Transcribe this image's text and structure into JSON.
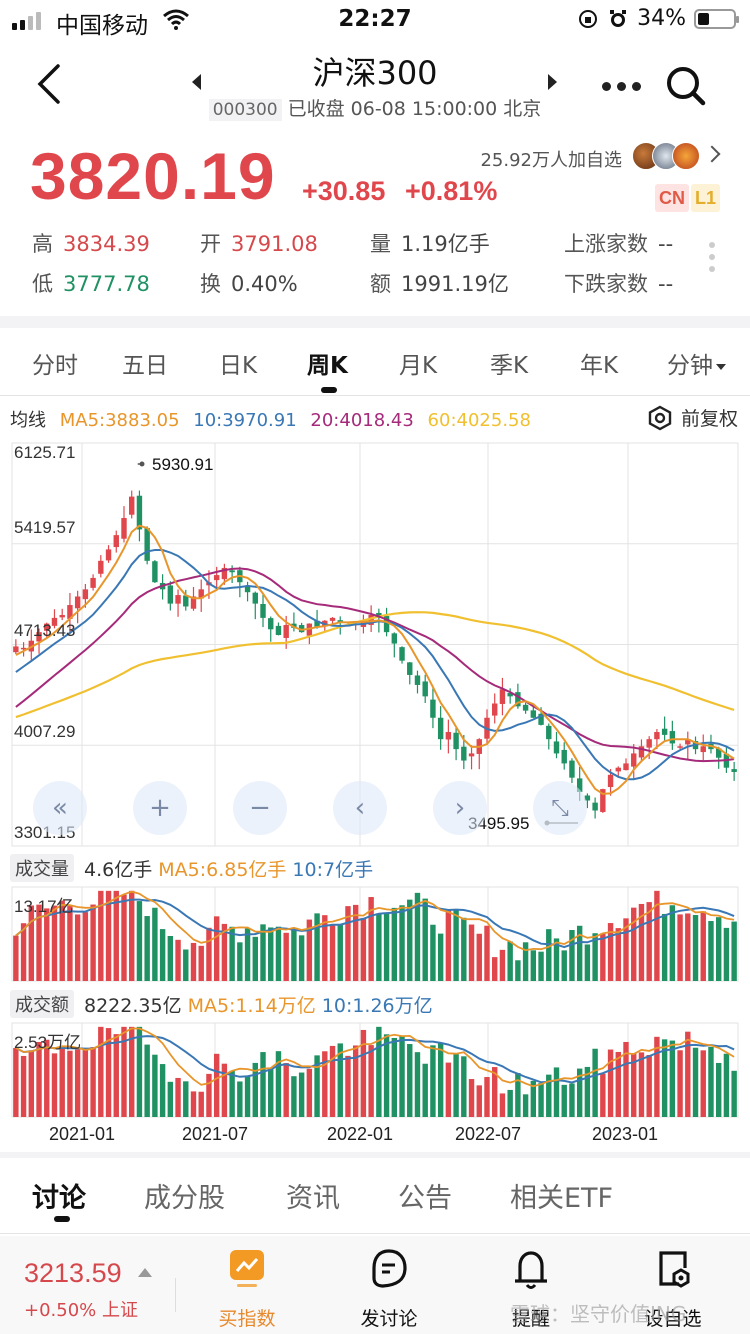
{
  "status_bar": {
    "carrier": "中国移动",
    "time": "22:27",
    "battery": "34%"
  },
  "header": {
    "title": "沪深300",
    "code": "000300",
    "market_status": "已收盘 06-08 15:00:00 北京"
  },
  "quote": {
    "price": "3820.19",
    "change": "+30.85",
    "change_pct": "+0.81%",
    "followers": "25.92万人加自选",
    "badge_cn": "CN",
    "badge_l1": "L1",
    "stats": [
      {
        "label": "高",
        "value": "3834.39",
        "tone": "red"
      },
      {
        "label": "开",
        "value": "3791.08",
        "tone": "red"
      },
      {
        "label": "量",
        "value": "1.19亿手",
        "tone": "dark"
      },
      {
        "label": "上涨家数",
        "value": "--",
        "tone": "dark"
      },
      {
        "label": "低",
        "value": "3777.78",
        "tone": "green"
      },
      {
        "label": "换",
        "value": "0.40%",
        "tone": "dark"
      },
      {
        "label": "额",
        "value": "1991.19亿",
        "tone": "dark"
      },
      {
        "label": "下跌家数",
        "value": "--",
        "tone": "dark"
      }
    ]
  },
  "period_tabs": [
    "分时",
    "五日",
    "日K",
    "周K",
    "月K",
    "季K",
    "年K",
    "分钟"
  ],
  "active_period": "周K",
  "ma_legend": {
    "title": "均线",
    "ma5": "MA5:3883.05",
    "ma10": "10:3970.91",
    "ma20": "20:4018.43",
    "ma60": "60:4025.58",
    "adjust": "前复权"
  },
  "colors": {
    "up": "#e0474c",
    "down": "#1f9163",
    "ma5": "#e8962b",
    "ma10": "#3a78b5",
    "ma20": "#a52a7a",
    "ma60": "#f0c030",
    "grid": "#e3e3e3"
  },
  "volume_legend": {
    "tag": "成交量",
    "value": "4.6亿手",
    "ma5": "MA5:6.85亿手",
    "ma10": "10:7亿手",
    "max_label": "13.17亿"
  },
  "amount_legend": {
    "tag": "成交额",
    "value": "8222.35亿",
    "ma5": "MA5:1.14万亿",
    "ma10": "10:1.26万亿",
    "max_label": "2.53万亿"
  },
  "chart_controls": [
    "fast-back",
    "zoom-in",
    "zoom-out",
    "prev",
    "next",
    "fullscreen"
  ],
  "bottom_tabs": [
    "讨论",
    "成分股",
    "资讯",
    "公告",
    "相关ETF"
  ],
  "bottom_bar": {
    "index_price": "3213.59",
    "index_change": "+0.50%",
    "index_name": "上证",
    "actions": [
      "买指数",
      "发讨论",
      "提醒",
      "设自选"
    ]
  },
  "watermark": "雪球：坚守价值ING",
  "chart_data": [
    {
      "type": "candlestick",
      "title": "沪深300 周K",
      "y_ticks": [
        6125.71,
        5419.57,
        4713.43,
        4007.29,
        3301.15
      ],
      "ylim": [
        3301.15,
        6125.71
      ],
      "x_ticks": [
        "2021-01",
        "2021-07",
        "2022-01",
        "2022-07",
        "2023-01"
      ],
      "annotations": [
        {
          "label": "5930.91",
          "type": "max"
        },
        {
          "label": "3495.95",
          "type": "min"
        }
      ],
      "series": [
        {
          "name": "MA5",
          "last": 3883.05
        },
        {
          "name": "MA10",
          "last": 3970.91
        },
        {
          "name": "MA20",
          "last": 4018.43
        },
        {
          "name": "MA60",
          "last": 4025.58
        }
      ],
      "approx_weekly_close": [
        4700,
        4690,
        4740,
        4800,
        4860,
        4900,
        4920,
        4990,
        5050,
        5100,
        5180,
        5300,
        5380,
        5480,
        5600,
        5750,
        5520,
        5300,
        5150,
        5100,
        5000,
        5060,
        4980,
        5050,
        5100,
        5150,
        5200,
        5250,
        5220,
        5150,
        5080,
        5000,
        4900,
        4820,
        4780,
        4850,
        4830,
        4800,
        4860,
        4840,
        4880,
        4900,
        4870,
        4850,
        4860,
        4880,
        4920,
        4900,
        4800,
        4720,
        4600,
        4500,
        4430,
        4350,
        4200,
        4050,
        4100,
        3980,
        3900,
        3950,
        4050,
        4200,
        4300,
        4400,
        4350,
        4280,
        4250,
        4200,
        4150,
        4050,
        3950,
        3880,
        3780,
        3680,
        3620,
        3550,
        3700,
        3800,
        3850,
        3880,
        3950,
        4000,
        4050,
        4100,
        4080,
        4020,
        4000,
        4050,
        3980,
        4000,
        3980,
        3920,
        3850,
        3820
      ],
      "legend": [
        "MA5",
        "MA10",
        "MA20",
        "MA60"
      ]
    },
    {
      "type": "bar",
      "title": "成交量",
      "max_label": "13.17亿",
      "series": [
        {
          "name": "成交量",
          "last": "4.6亿手"
        },
        {
          "name": "MA5",
          "last": "6.85亿手"
        },
        {
          "name": "MA10",
          "last": "7亿手"
        }
      ]
    },
    {
      "type": "bar",
      "title": "成交额",
      "max_label": "2.53万亿",
      "series": [
        {
          "name": "成交额",
          "last": "8222.35亿"
        },
        {
          "name": "MA5",
          "last": "1.14万亿"
        },
        {
          "name": "MA10",
          "last": "1.26万亿"
        }
      ]
    }
  ]
}
